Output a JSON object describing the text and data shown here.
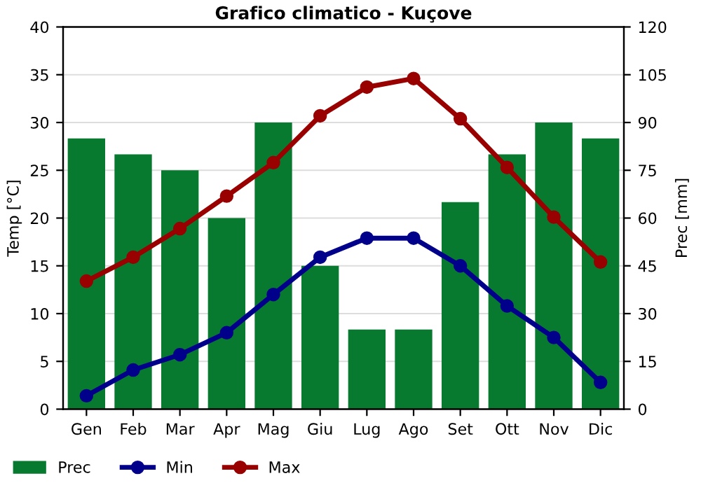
{
  "chart_data": {
    "type": "bar",
    "title": "Grafico climatico - Kuçove",
    "ylabel": "Temp [°C]",
    "y2label": "Prec [mm]",
    "categories": [
      "Gen",
      "Feb",
      "Mar",
      "Apr",
      "Mag",
      "Giu",
      "Lug",
      "Ago",
      "Set",
      "Ott",
      "Nov",
      "Dic"
    ],
    "series": [
      {
        "name": "Prec",
        "axis": "y2",
        "color": "#077a30",
        "values": [
          85,
          80,
          75,
          60,
          90,
          45,
          25,
          25,
          65,
          80,
          90,
          85
        ]
      },
      {
        "name": "Min",
        "type": "line",
        "color": "#00008b",
        "values": [
          1.4,
          4.1,
          5.7,
          8.0,
          12.0,
          15.9,
          17.9,
          17.9,
          15.0,
          10.8,
          7.5,
          2.8
        ]
      },
      {
        "name": "Max",
        "type": "line",
        "color": "#990000",
        "values": [
          13.4,
          15.9,
          18.9,
          22.3,
          25.8,
          30.7,
          33.7,
          34.6,
          30.4,
          25.3,
          20.1,
          15.4
        ]
      }
    ],
    "ylim": [
      0,
      40
    ],
    "yticks": [
      0,
      5,
      10,
      15,
      20,
      25,
      30,
      35,
      40
    ],
    "y2lim": [
      0,
      120
    ],
    "y2ticks": [
      0,
      15,
      30,
      45,
      60,
      75,
      90,
      105,
      120
    ],
    "grid": true,
    "legend": "bottom",
    "marker": "circle"
  }
}
